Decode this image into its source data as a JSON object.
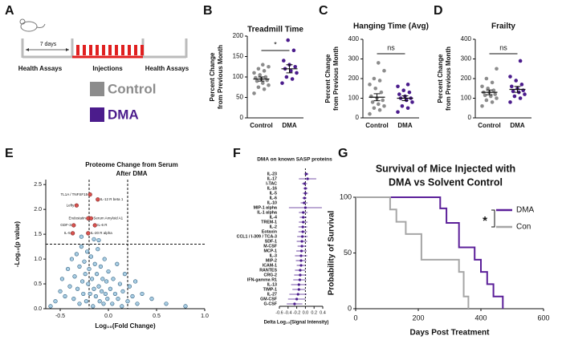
{
  "schematic": {
    "label": "A",
    "interval": "7 days",
    "stages": [
      "Health Assays",
      "Injections",
      "Health Assays"
    ],
    "groups": [
      {
        "name": "Control",
        "color": "#8c8c8c"
      },
      {
        "name": "DMA",
        "color": "#4b1c8c"
      }
    ]
  },
  "chart_data": [
    {
      "panel": "B",
      "type": "dot",
      "title": "Treadmill Time",
      "ylabel": [
        "Percent Change",
        "from Previous Month"
      ],
      "categories": [
        "Control",
        "DMA"
      ],
      "colors": [
        "#8c8c8c",
        "#4b1c8c"
      ],
      "values": [
        [
          60,
          70,
          75,
          80,
          85,
          90,
          92,
          95,
          98,
          100,
          105,
          110,
          115,
          120,
          125,
          130
        ],
        [
          85,
          95,
          100,
          110,
          115,
          120,
          125,
          130,
          140,
          165,
          190
        ]
      ],
      "means": [
        95,
        120
      ],
      "errors": [
        5,
        10
      ],
      "significance": "*",
      "ylim": [
        0,
        200
      ],
      "yticks": [
        0,
        50,
        100,
        150,
        200
      ]
    },
    {
      "panel": "C",
      "type": "dot",
      "title": "Hanging Time (Avg)",
      "ylabel": [
        "Percent Change",
        "from Previous Month"
      ],
      "categories": [
        "Control",
        "DMA"
      ],
      "colors": [
        "#8c8c8c",
        "#4b1c8c"
      ],
      "values": [
        [
          20,
          40,
          50,
          60,
          70,
          80,
          90,
          100,
          110,
          130,
          150,
          170,
          190,
          200,
          240,
          280
        ],
        [
          30,
          50,
          60,
          80,
          90,
          100,
          100,
          110,
          120,
          130,
          140,
          160,
          170
        ]
      ],
      "means": [
        105,
        100
      ],
      "errors": [
        18,
        12
      ],
      "significance": "ns",
      "ylim": [
        0,
        400
      ],
      "yticks": [
        0,
        100,
        200,
        300,
        400
      ]
    },
    {
      "panel": "D",
      "type": "dot",
      "title": "Frailty",
      "ylabel": [
        "Percent Change",
        "from Previous Month"
      ],
      "categories": [
        "Control",
        "DMA"
      ],
      "colors": [
        "#8c8c8c",
        "#4b1c8c"
      ],
      "values": [
        [
          60,
          80,
          90,
          100,
          110,
          115,
          120,
          130,
          130,
          140,
          150,
          160,
          180,
          200,
          250
        ],
        [
          80,
          100,
          110,
          120,
          130,
          135,
          140,
          150,
          160,
          170,
          190,
          210,
          290
        ]
      ],
      "means": [
        130,
        145
      ],
      "errors": [
        12,
        15
      ],
      "significance": "ns",
      "ylim": [
        0,
        400
      ],
      "yticks": [
        0,
        100,
        200,
        300,
        400
      ]
    },
    {
      "panel": "E",
      "type": "scatter",
      "title": [
        "Proteome Change from Serum",
        "After DMA"
      ],
      "xlabel": "Log₁₀(Fold Change)",
      "ylabel": "-Log₁₀(p value)",
      "color": "#a9cde3",
      "highlight_color": "#d9534f",
      "x": [
        -0.55,
        -0.5,
        -0.48,
        -0.45,
        -0.42,
        -0.4,
        -0.38,
        -0.36,
        -0.35,
        -0.33,
        -0.32,
        -0.3,
        -0.3,
        -0.28,
        -0.27,
        -0.26,
        -0.25,
        -0.24,
        -0.23,
        -0.22,
        -0.21,
        -0.2,
        -0.19,
        -0.18,
        -0.17,
        -0.16,
        -0.15,
        -0.14,
        -0.13,
        -0.12,
        -0.11,
        -0.1,
        -0.09,
        -0.08,
        -0.07,
        -0.06,
        -0.05,
        -0.04,
        -0.03,
        -0.02,
        -0.01,
        0.0,
        0.02,
        0.04,
        0.05,
        0.07,
        0.09,
        0.1,
        0.12,
        0.14,
        0.15,
        0.17,
        0.2,
        0.22,
        0.25,
        0.28,
        0.3,
        0.35,
        0.45,
        0.6,
        0.8,
        -0.6,
        -0.28,
        -0.15,
        -0.1
      ],
      "values": [
        0.15,
        0.35,
        0.6,
        0.25,
        0.8,
        0.45,
        1.0,
        0.2,
        0.65,
        1.1,
        0.4,
        0.85,
        0.1,
        1.25,
        0.55,
        0.3,
        0.95,
        0.7,
        0.15,
        1.15,
        0.5,
        0.8,
        0.3,
        1.05,
        0.6,
        0.05,
        0.4,
        0.9,
        0.25,
        0.7,
        1.2,
        0.45,
        0.15,
        0.85,
        0.35,
        0.6,
        0.1,
        1.0,
        0.3,
        0.55,
        0.2,
        0.75,
        0.4,
        0.1,
        0.6,
        0.3,
        0.9,
        0.2,
        0.5,
        0.05,
        0.35,
        0.7,
        0.15,
        0.45,
        0.25,
        0.55,
        0.1,
        0.3,
        0.2,
        0.1,
        0.05,
        0.05,
        1.45,
        1.4,
        1.38
      ],
      "annotations": [
        {
          "text": "TL1A / TNFSF15",
          "x": -0.19,
          "y": 2.3
        },
        {
          "text": "IL-12 R beta 1",
          "x": -0.11,
          "y": 2.2
        },
        {
          "text": "Lefty",
          "x": -0.33,
          "y": 2.08
        },
        {
          "text": "Endostatin",
          "x": -0.21,
          "y": 1.82
        },
        {
          "text": "Serum Amyloid A1",
          "x": -0.18,
          "y": 1.82
        },
        {
          "text": "GDF-3",
          "x": -0.36,
          "y": 1.68
        },
        {
          "text": "IL-6 R",
          "x": -0.14,
          "y": 1.68
        },
        {
          "text": "IL-5",
          "x": -0.37,
          "y": 1.52
        },
        {
          "text": "IL-20 R alpha",
          "x": -0.21,
          "y": 1.52
        }
      ],
      "hline": 1.3,
      "vlines": [
        -0.2,
        0.2
      ],
      "xlim": [
        -0.65,
        1.0
      ],
      "xticks": [
        -0.5,
        {
          "value": 0,
          "label": "0.0"
        },
        0.5,
        {
          "value": 1,
          "label": "1.0"
        }
      ],
      "ylim": [
        0,
        2.6
      ],
      "yticks": [
        {
          "value": 0,
          "label": "0.0"
        },
        0.5,
        {
          "value": 1,
          "label": "1.0"
        },
        1.5,
        {
          "value": 2,
          "label": "2.0"
        },
        2.5
      ]
    },
    {
      "panel": "F",
      "type": "forest",
      "title": "DMA on known SASP proteins",
      "xlabel": "Delta Log₁₀(Signal Intensity)",
      "categories": [
        "IL-23",
        "IL-17",
        "I-TAC",
        "IL-16",
        "IL-5",
        "IL-6",
        "IL-10",
        "MIP-1 alpha",
        "IL-1 alpha",
        "IL-4",
        "TREM-1",
        "IL-2",
        "Eotaxin",
        "CCL1 / I-309 / TCA-3",
        "SDF-1",
        "M-CSF",
        "MCP-1",
        "IL-3",
        "MIP-2",
        "ICAM-1",
        "RANTES",
        "CRG-2",
        "IFN-gamma R1",
        "IL-13",
        "TIMP-1",
        "IL-27",
        "GM-CSF",
        "G-CSF"
      ],
      "values": [
        0.02,
        0.05,
        -0.02,
        0.0,
        0.0,
        -0.02,
        -0.03,
        0.0,
        -0.05,
        -0.05,
        -0.05,
        -0.06,
        -0.06,
        -0.07,
        -0.08,
        -0.08,
        -0.09,
        -0.1,
        -0.1,
        -0.1,
        -0.12,
        -0.12,
        -0.13,
        -0.15,
        -0.15,
        -0.17,
        -0.2,
        -0.25
      ],
      "errors": [
        0.05,
        0.2,
        0.06,
        0.05,
        0.06,
        0.05,
        0.08,
        0.38,
        0.1,
        0.08,
        0.1,
        0.1,
        0.1,
        0.12,
        0.12,
        0.1,
        0.12,
        0.14,
        0.12,
        0.1,
        0.12,
        0.14,
        0.15,
        0.18,
        0.15,
        0.2,
        0.2,
        0.18
      ],
      "color": "#4b1c8c",
      "xlim": [
        -0.6,
        0.4
      ],
      "xticks": [
        -0.6,
        -0.4,
        -0.2,
        {
          "value": 0,
          "label": "0.0"
        },
        0.2,
        0.4
      ]
    },
    {
      "panel": "G",
      "type": "step",
      "title": [
        "Survival of Mice Injected with",
        "DMA vs Solvent Control"
      ],
      "xlabel": "Days Post Treatment",
      "ylabel": "Probability of Survival",
      "significance": "*",
      "series": [
        {
          "name": "DMA",
          "color": "#5b1f99",
          "x": [
            0,
            270,
            290,
            330,
            380,
            400,
            420,
            440,
            470
          ],
          "values": [
            100,
            90,
            77,
            55,
            44,
            33,
            22,
            11,
            0
          ]
        },
        {
          "name": "Con",
          "color": "#a6a6a6",
          "x": [
            0,
            110,
            130,
            160,
            210,
            330,
            345,
            360
          ],
          "values": [
            100,
            89,
            78,
            67,
            44,
            33,
            11,
            0
          ]
        }
      ],
      "xlim": [
        0,
        600
      ],
      "xticks": [
        0,
        200,
        400,
        600
      ],
      "ylim": [
        0,
        100
      ],
      "yticks": [
        0,
        50,
        100
      ]
    }
  ]
}
